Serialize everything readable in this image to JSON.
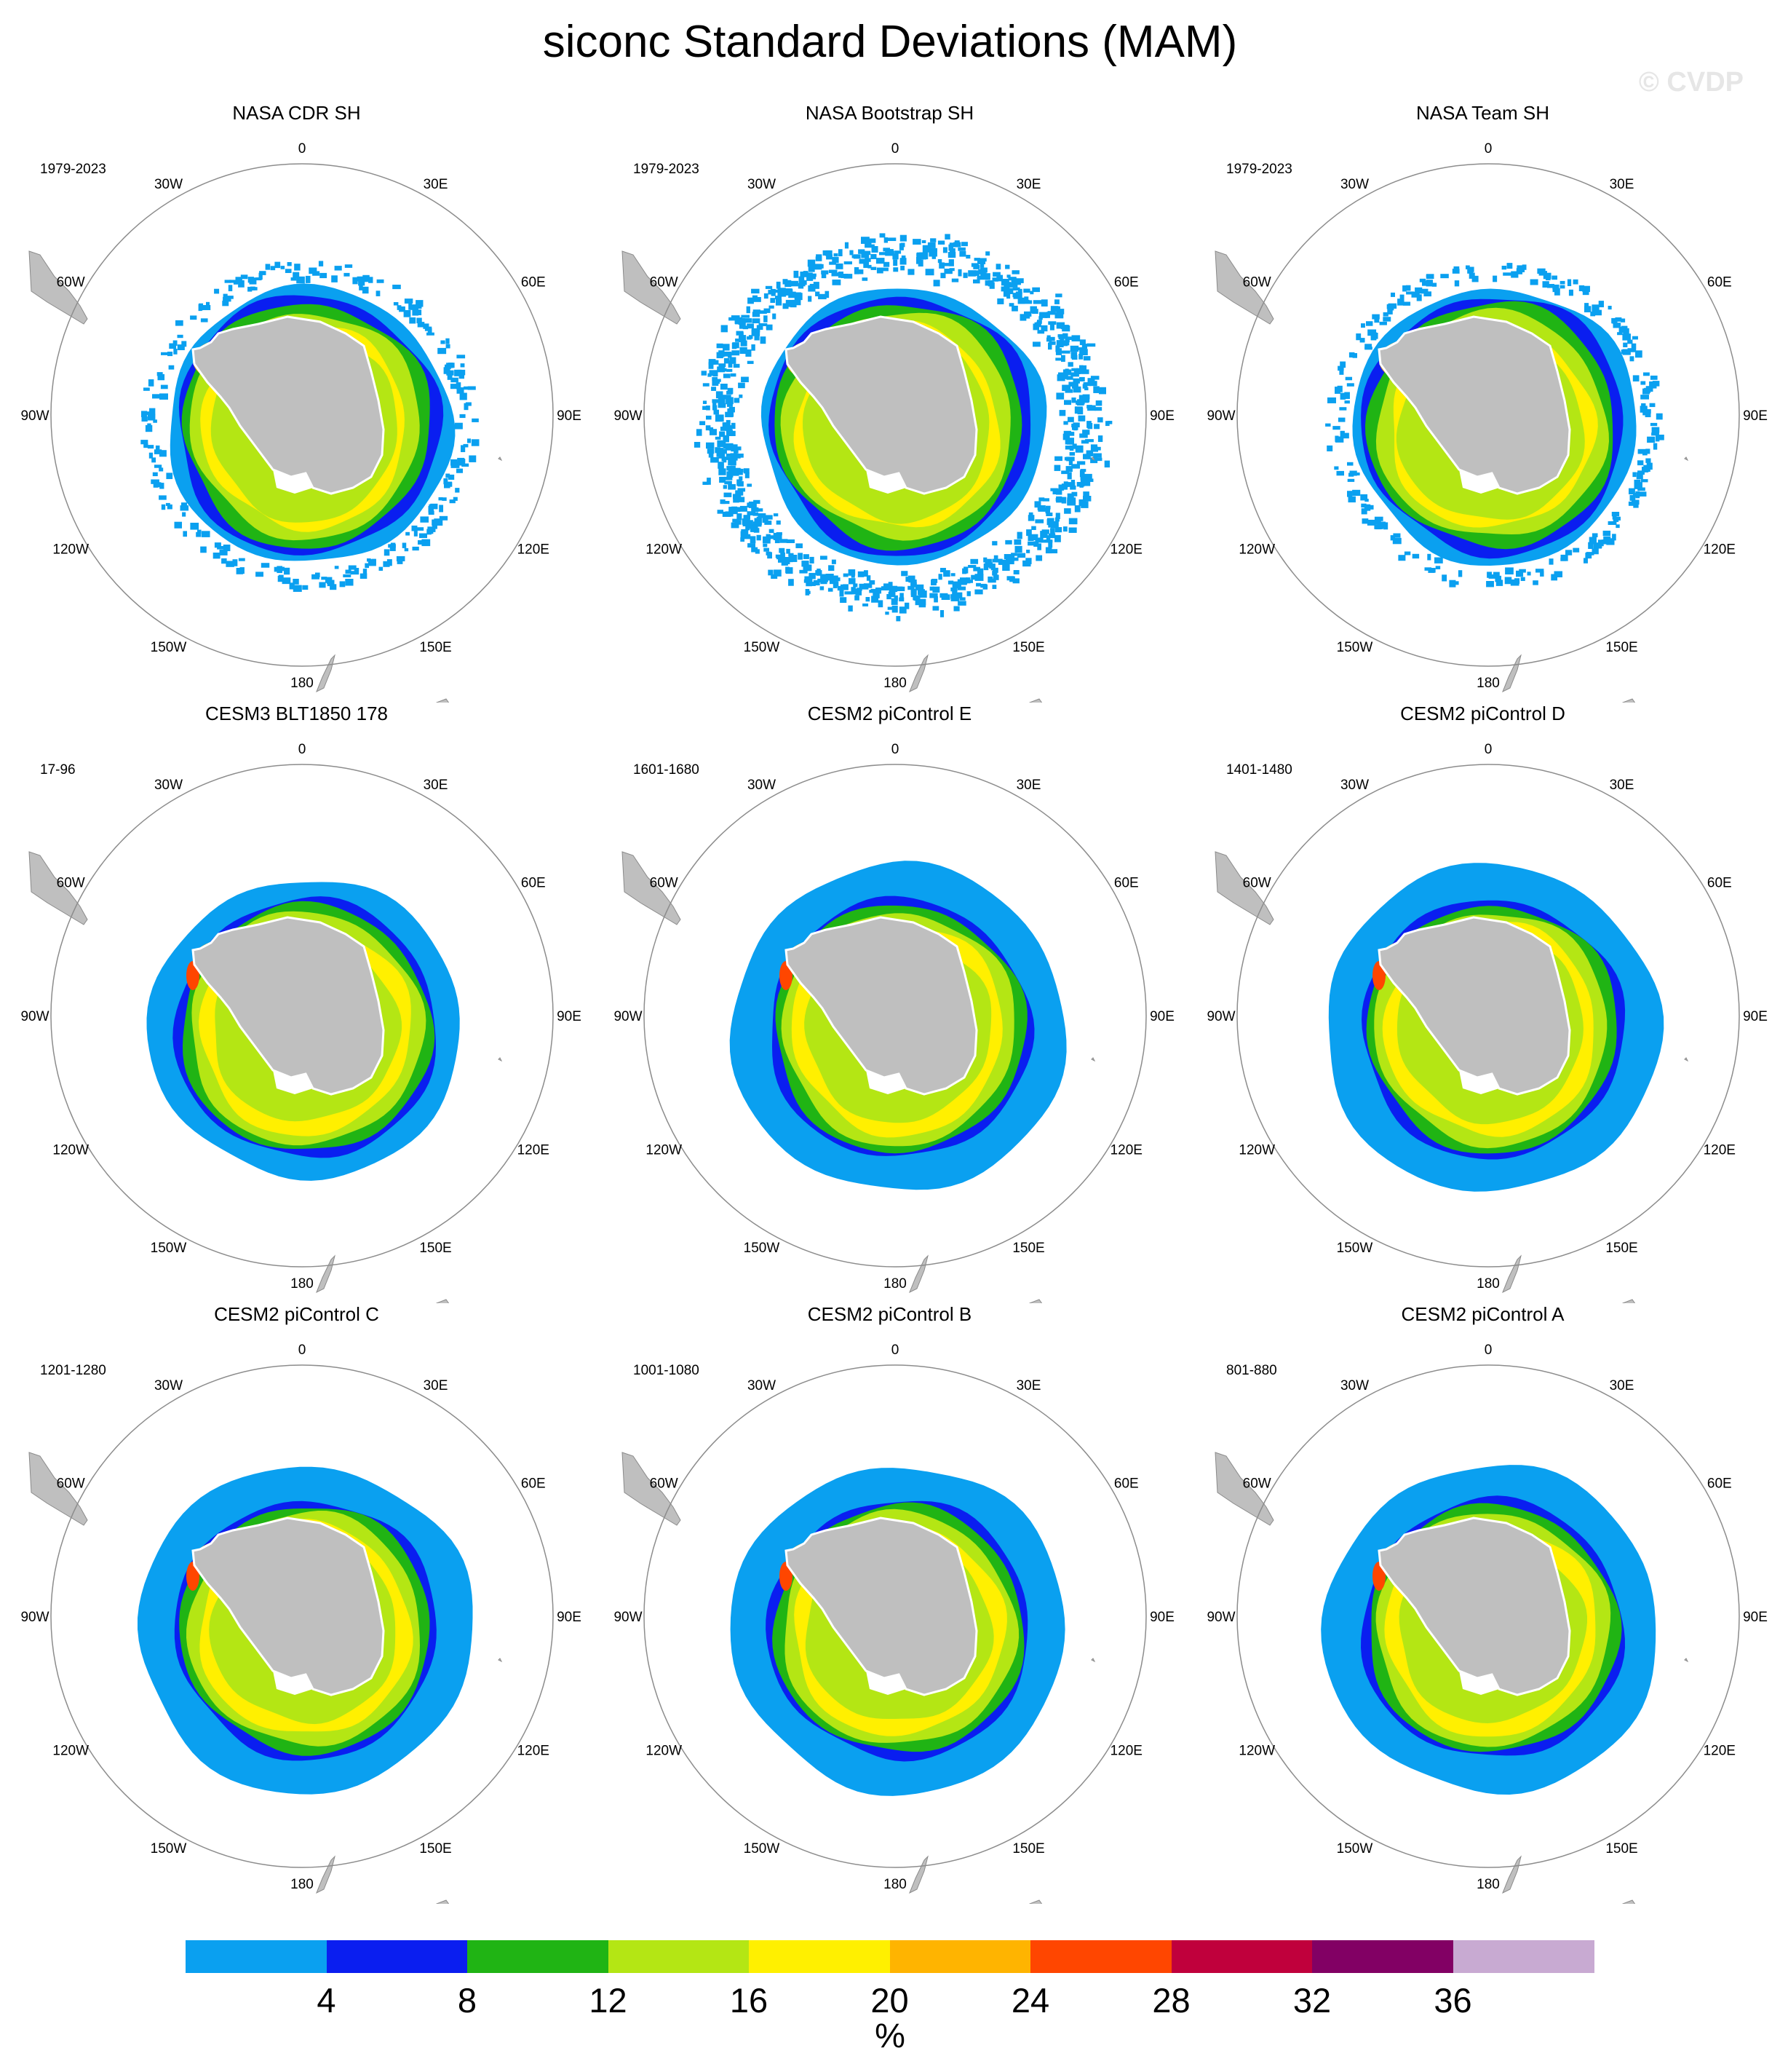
{
  "title": "siconc Standard Deviations (MAM)",
  "watermark": "© CVDP",
  "longitude_labels": [
    "0",
    "30E",
    "60E",
    "90E",
    "120E",
    "150E",
    "180",
    "150W",
    "120W",
    "90W",
    "60W",
    "30W"
  ],
  "panels": [
    {
      "title": "NASA CDR SH",
      "period": "1979-2023"
    },
    {
      "title": "NASA Bootstrap SH",
      "period": "1979-2023"
    },
    {
      "title": "NASA Team SH",
      "period": "1979-2023"
    },
    {
      "title": "CESM3 BLT1850 178",
      "period": "17-96"
    },
    {
      "title": "CESM2 piControl E",
      "period": "1601-1680"
    },
    {
      "title": "CESM2 piControl D",
      "period": "1401-1480"
    },
    {
      "title": "CESM2 piControl C",
      "period": "1201-1280"
    },
    {
      "title": "CESM2 piControl B",
      "period": "1001-1080"
    },
    {
      "title": "CESM2 piControl A",
      "period": "801-880"
    }
  ],
  "colorbar": {
    "unit": "%",
    "labels": [
      "4",
      "8",
      "12",
      "16",
      "20",
      "24",
      "28",
      "32",
      "36"
    ],
    "colors": [
      "#0aa0f0",
      "#0a1ef0",
      "#20b414",
      "#b4e614",
      "#fff000",
      "#ffb400",
      "#ff4600",
      "#c0003c",
      "#820064",
      "#c8aad2"
    ]
  },
  "colors": {
    "land": "#bfbfbf",
    "land_edge": "#8a8a8a",
    "map_circle": "#8c8c8c"
  }
}
